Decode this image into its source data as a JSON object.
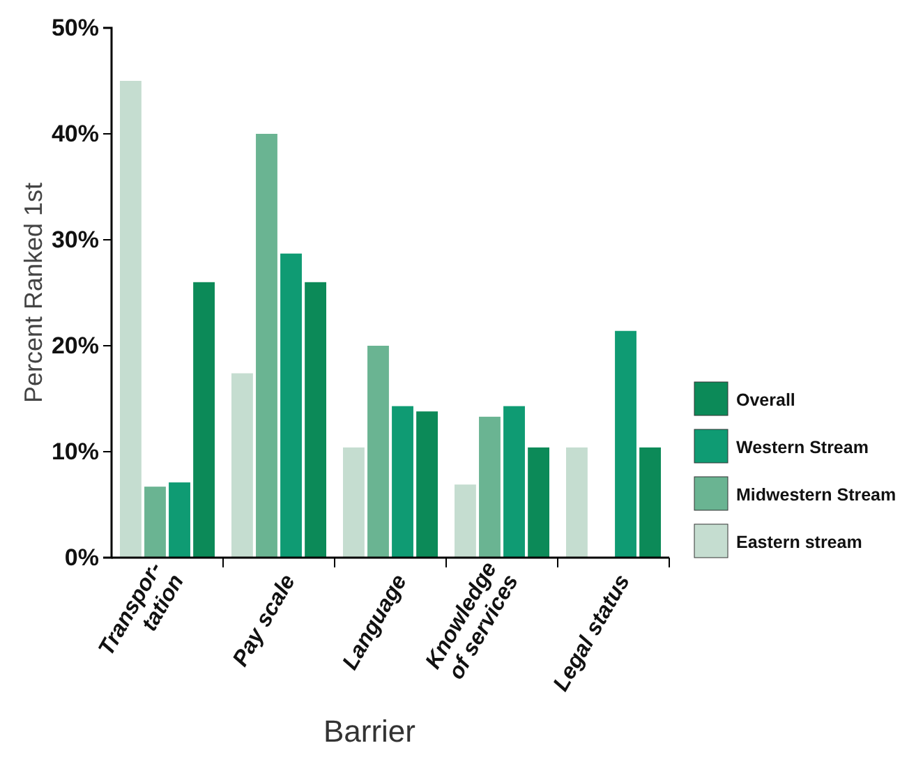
{
  "chart_data": {
    "type": "bar",
    "xlabel": "Barrier",
    "ylabel": "Percent Ranked 1st",
    "categories": [
      "Transpor-\ntation",
      "Pay scale",
      "Language",
      "Knowledge\nof services",
      "Legal status"
    ],
    "series": [
      {
        "name": "Eastern stream",
        "color": "#c5ddd0",
        "values": [
          45,
          17.4,
          10.4,
          6.9,
          10.4
        ]
      },
      {
        "name": "Midwestern Stream",
        "color": "#6ab492",
        "values": [
          6.7,
          40,
          20,
          13.3,
          0
        ]
      },
      {
        "name": "Western Stream",
        "color": "#0f9b73",
        "values": [
          7.1,
          28.7,
          14.3,
          14.3,
          21.4
        ]
      },
      {
        "name": "Overall",
        "color": "#0c8a58",
        "values": [
          26,
          26,
          13.8,
          10.4,
          10.4
        ]
      }
    ],
    "ylim": [
      0,
      50
    ],
    "yticks": [
      {
        "value": 0,
        "label": "0%"
      },
      {
        "value": 10,
        "label": "10%"
      },
      {
        "value": 20,
        "label": "20%"
      },
      {
        "value": 30,
        "label": "30%"
      },
      {
        "value": 40,
        "label": "40%"
      },
      {
        "value": 50,
        "label": "50%"
      }
    ],
    "grid": false,
    "legend": "right"
  }
}
